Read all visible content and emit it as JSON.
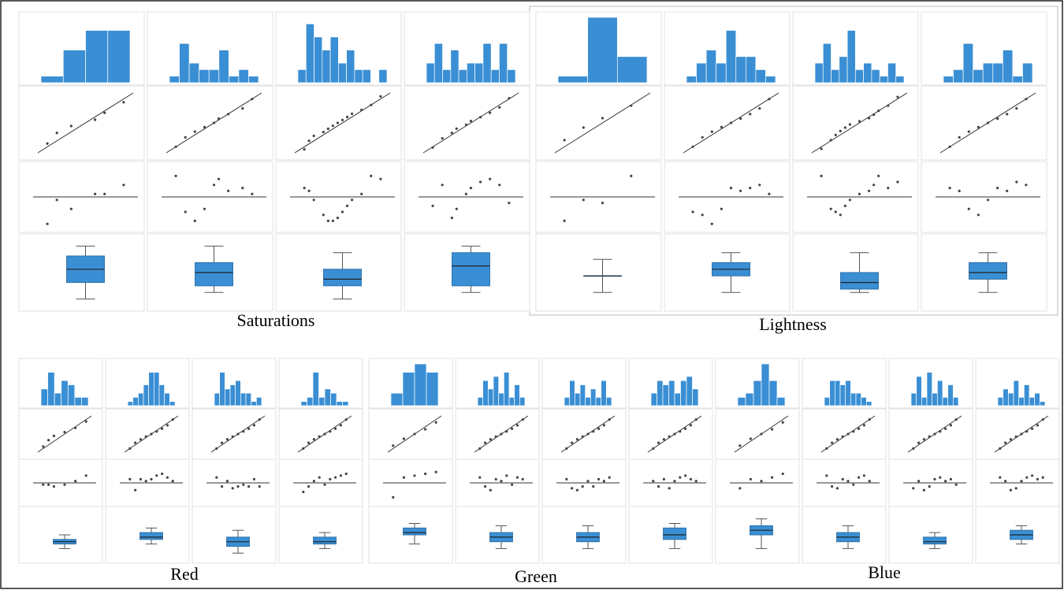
{
  "chart_data": {
    "type": "normality-panels",
    "color": "#3a8fd4",
    "hist_ylim": [
      0,
      10
    ],
    "value_lim": [
      0,
      10
    ],
    "dev_lim": [
      -1,
      1
    ],
    "groups": [
      {
        "label": "Saturations",
        "panels": [
          {
            "hist": [
              1,
              5,
              8,
              8
            ],
            "qq": [
              1,
              2,
              3.5,
              6,
              7,
              9
            ],
            "dev": [
              -0.9,
              -0.1,
              -0.4,
              0.1,
              0.1,
              0.4
            ],
            "box": [
              1,
              3.5,
              5.5,
              7.5,
              9
            ]
          },
          {
            "hist": [
              1,
              6,
              3,
              2,
              2,
              5,
              1,
              2,
              1
            ],
            "qq": [
              1,
              2,
              3,
              4,
              5,
              5.5,
              6.5,
              8,
              9
            ],
            "dev": [
              0.7,
              -0.5,
              -0.8,
              -0.4,
              0.4,
              0.6,
              0.2,
              0.3,
              0.1
            ],
            "box": [
              2,
              3,
              5,
              6.5,
              9
            ]
          },
          {
            "hist": [
              2,
              9,
              7,
              5,
              7,
              3,
              5,
              2,
              2,
              0,
              2
            ],
            "qq": [
              1,
              1.5,
              2,
              3,
              3.5,
              4,
              4.5,
              5,
              5.5,
              6,
              7,
              8,
              9
            ],
            "dev": [
              0.3,
              0.2,
              -0.1,
              -0.6,
              -0.8,
              -0.8,
              -0.7,
              -0.5,
              -0.3,
              -0.1,
              0.1,
              0.7,
              0.6
            ],
            "box": [
              1,
              3,
              4,
              5.5,
              8
            ]
          },
          {
            "hist": [
              3,
              6,
              2,
              5,
              2,
              3,
              3,
              6,
              2,
              6,
              2
            ],
            "qq": [
              1,
              2,
              3,
              3.5,
              4.5,
              5,
              6,
              7,
              8,
              9
            ],
            "dev": [
              -0.3,
              0.4,
              -0.7,
              -0.4,
              0.1,
              0.3,
              0.5,
              0.6,
              0.4,
              -0.2
            ],
            "box": [
              2,
              3,
              6,
              8,
              9
            ]
          }
        ]
      },
      {
        "label": "Lightness",
        "panels": [
          {
            "hist": [
              1,
              10,
              4
            ],
            "qq": [
              1,
              3,
              5,
              8
            ],
            "dev": [
              -0.8,
              -0.1,
              -0.2,
              0.7
            ],
            "box": [
              2,
              4.5,
              4.5,
              4.5,
              7
            ]
          },
          {
            "hist": [
              1,
              3,
              5,
              3,
              8,
              4,
              4,
              2,
              1
            ],
            "qq": [
              1,
              2,
              3,
              4,
              5,
              6,
              7,
              8,
              9
            ],
            "dev": [
              -0.5,
              -0.6,
              -0.9,
              -0.4,
              0.3,
              0.2,
              0.3,
              0.4,
              0.1
            ],
            "box": [
              2,
              4.5,
              5.5,
              6.5,
              8
            ]
          },
          {
            "hist": [
              3,
              6,
              2,
              4,
              8,
              2,
              3,
              2,
              1,
              3,
              1
            ],
            "qq": [
              1,
              2,
              2.5,
              3,
              3.5,
              4,
              5,
              6,
              6.5,
              7,
              8,
              9
            ],
            "dev": [
              0.7,
              -0.4,
              -0.5,
              -0.6,
              -0.3,
              -0.1,
              0.1,
              0.2,
              0.4,
              0.7,
              0.3,
              0.5
            ],
            "box": [
              2,
              2.5,
              3.5,
              5,
              8
            ]
          },
          {
            "hist": [
              1,
              2,
              6,
              2,
              3,
              3,
              5,
              1,
              3
            ],
            "qq": [
              1,
              2,
              3,
              4,
              5,
              6,
              7,
              8,
              9
            ],
            "dev": [
              0.3,
              0.2,
              -0.4,
              -0.6,
              -0.1,
              0.3,
              0.2,
              0.5,
              0.4
            ],
            "box": [
              2,
              4,
              5,
              6.5,
              8
            ]
          }
        ]
      },
      {
        "label": "Red",
        "panels": [
          {
            "hist": [
              4,
              8,
              3,
              6,
              5,
              2,
              2
            ],
            "qq": [
              1,
              2,
              3,
              5,
              7,
              9
            ],
            "dev": [
              -0.1,
              -0.1,
              -0.2,
              -0.1,
              0.1,
              0.4
            ],
            "box": [
              2,
              3,
              3.5,
              4,
              5
            ]
          },
          {
            "hist": [
              1,
              2,
              3,
              5,
              8,
              8,
              5,
              3,
              1
            ],
            "qq": [
              1,
              2,
              3,
              4,
              5,
              6,
              7,
              8,
              9
            ],
            "dev": [
              0.2,
              -0.4,
              0.2,
              0.1,
              0.2,
              0.4,
              0.5,
              0.3,
              0.1
            ],
            "box": [
              3,
              4,
              4.5,
              5.5,
              6.5
            ]
          },
          {
            "hist": [
              3,
              8,
              4,
              5,
              6,
              3,
              3,
              1,
              2
            ],
            "qq": [
              1,
              2,
              3,
              4,
              5,
              6,
              7,
              8,
              9
            ],
            "dev": [
              0.3,
              -0.2,
              0.1,
              -0.3,
              -0.2,
              -0.1,
              -0.2,
              0.2,
              -0.2
            ],
            "box": [
              1,
              2.5,
              3.5,
              4.5,
              6
            ]
          },
          {
            "hist": [
              1,
              2,
              8,
              2,
              4,
              3,
              1,
              1
            ],
            "qq": [
              1,
              2,
              3,
              4,
              5,
              6,
              7,
              8,
              9
            ],
            "dev": [
              -0.5,
              -0.2,
              0.1,
              0.3,
              -0.1,
              0.2,
              0.3,
              0.4,
              0.5
            ],
            "box": [
              2,
              3,
              3.5,
              4.5,
              5.5
            ]
          }
        ]
      },
      {
        "label": "Green",
        "panels": [
          {
            "hist": [
              3,
              8,
              10,
              8
            ],
            "qq": [
              1,
              3,
              5,
              7,
              9
            ],
            "dev": [
              -0.8,
              0.3,
              0.4,
              0.5,
              0.6
            ],
            "box": [
              3,
              5,
              5.5,
              6.5,
              7.5
            ]
          },
          {
            "hist": [
              2,
              6,
              4,
              7,
              3,
              8,
              2,
              5,
              2
            ],
            "qq": [
              1,
              2,
              3,
              4,
              5,
              6,
              7,
              8,
              9
            ],
            "dev": [
              0.3,
              -0.2,
              -0.4,
              0.2,
              0.1,
              0.4,
              -0.1,
              0.3,
              0.2
            ],
            "box": [
              2,
              3.5,
              4.5,
              5.5,
              7
            ]
          },
          {
            "hist": [
              2,
              6,
              3,
              5,
              2,
              4,
              2,
              6,
              2
            ],
            "qq": [
              1,
              2,
              3,
              4,
              5,
              6,
              7,
              8,
              9
            ],
            "dev": [
              0.2,
              -0.3,
              -0.4,
              -0.2,
              0.1,
              -0.2,
              0.2,
              0.1,
              0.3
            ],
            "box": [
              2,
              3.5,
              4.5,
              5.5,
              7
            ]
          },
          {
            "hist": [
              3,
              6,
              5,
              6,
              3,
              6,
              7,
              4
            ],
            "qq": [
              1,
              2,
              3,
              4,
              5,
              6,
              7,
              8,
              9
            ],
            "dev": [
              0.1,
              -0.2,
              0.2,
              -0.3,
              0.1,
              0.3,
              0.4,
              0.2,
              0.1
            ],
            "box": [
              2,
              4,
              5,
              6.5,
              7.5
            ]
          }
        ]
      },
      {
        "label": "Blue",
        "panels": [
          {
            "hist": [
              2,
              3,
              6,
              10,
              6,
              2
            ],
            "qq": [
              1,
              3,
              5,
              7,
              9
            ],
            "dev": [
              -0.3,
              0.2,
              0.1,
              0.3,
              0.5
            ],
            "box": [
              2,
              5,
              6,
              7,
              8.5
            ]
          },
          {
            "hist": [
              2,
              6,
              6,
              5,
              6,
              3,
              3,
              2,
              1
            ],
            "qq": [
              1,
              2,
              3,
              4,
              5,
              6,
              7,
              8,
              9
            ],
            "dev": [
              0.4,
              -0.2,
              -0.3,
              0.2,
              0.1,
              -0.1,
              0.3,
              0.4,
              0.1
            ],
            "box": [
              2,
              3.5,
              4.5,
              5.5,
              7
            ]
          },
          {
            "hist": [
              3,
              7,
              2,
              8,
              3,
              6,
              2,
              5,
              2
            ],
            "qq": [
              1,
              2,
              3,
              4,
              5,
              6,
              7,
              8,
              9
            ],
            "dev": [
              -0.3,
              0.1,
              -0.4,
              -0.2,
              0.2,
              0.3,
              0.1,
              0.2,
              -0.1
            ],
            "box": [
              2,
              3,
              3.5,
              4.5,
              5.5
            ]
          },
          {
            "hist": [
              2,
              4,
              3,
              6,
              2,
              5,
              2,
              3,
              1
            ],
            "qq": [
              1,
              2,
              3,
              4,
              5,
              6,
              7,
              8,
              9
            ],
            "dev": [
              0.3,
              0.1,
              -0.4,
              -0.3,
              0.1,
              0.3,
              0.4,
              0.2,
              0.3
            ],
            "box": [
              3,
              4,
              5,
              6,
              7
            ]
          }
        ]
      }
    ]
  }
}
